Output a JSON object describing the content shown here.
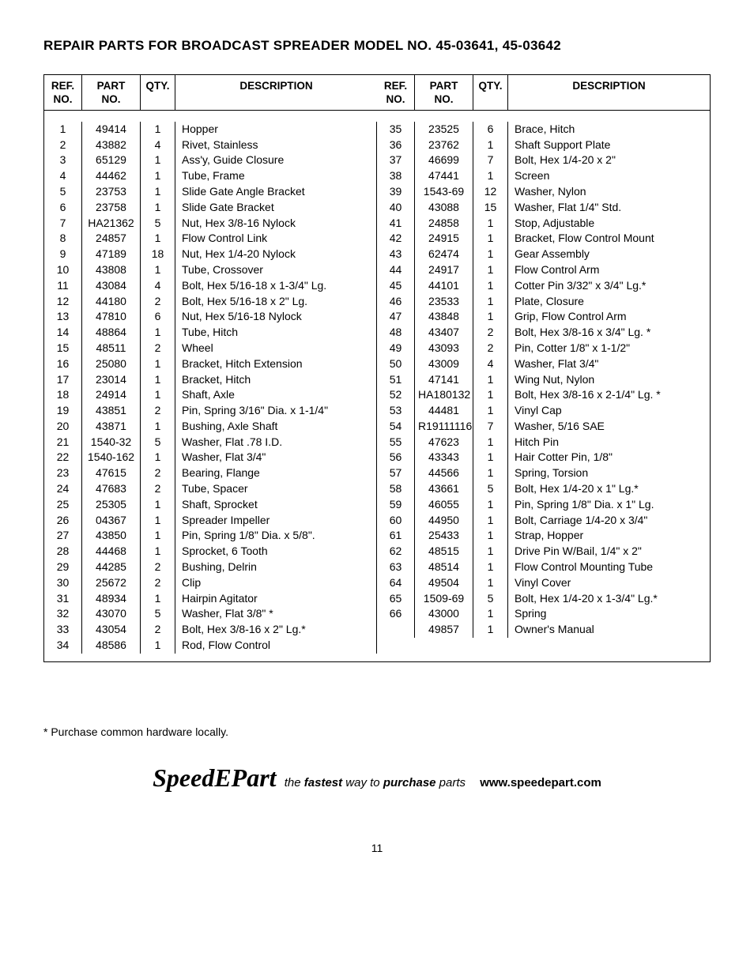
{
  "title": "REPAIR PARTS FOR BROADCAST SPREADER MODEL NO. 45-03641, 45-03642",
  "headers": {
    "ref": "REF.\nNO.",
    "part": "PART\nNO.",
    "qty": "QTY.",
    "desc": "DESCRIPTION"
  },
  "parts_left": [
    {
      "ref": "1",
      "part": "49414",
      "qty": "1",
      "desc": "Hopper"
    },
    {
      "ref": "2",
      "part": "43882",
      "qty": "4",
      "desc": "Rivet, Stainless"
    },
    {
      "ref": "3",
      "part": "65129",
      "qty": "1",
      "desc": "Ass'y, Guide Closure"
    },
    {
      "ref": "4",
      "part": "44462",
      "qty": "1",
      "desc": "Tube, Frame"
    },
    {
      "ref": "5",
      "part": "23753",
      "qty": "1",
      "desc": "Slide Gate Angle Bracket"
    },
    {
      "ref": "6",
      "part": "23758",
      "qty": "1",
      "desc": "Slide Gate Bracket"
    },
    {
      "ref": "7",
      "part": "HA21362",
      "qty": "5",
      "desc": "Nut, Hex 3/8-16 Nylock"
    },
    {
      "ref": "8",
      "part": "24857",
      "qty": "1",
      "desc": "Flow Control Link"
    },
    {
      "ref": "9",
      "part": "47189",
      "qty": "18",
      "desc": "Nut, Hex 1/4-20 Nylock"
    },
    {
      "ref": "10",
      "part": "43808",
      "qty": "1",
      "desc": "Tube, Crossover"
    },
    {
      "ref": "11",
      "part": "43084",
      "qty": "4",
      "desc": "Bolt, Hex 5/16-18 x 1-3/4\" Lg."
    },
    {
      "ref": "12",
      "part": "44180",
      "qty": "2",
      "desc": "Bolt, Hex 5/16-18 x 2\" Lg."
    },
    {
      "ref": "13",
      "part": "47810",
      "qty": "6",
      "desc": "Nut, Hex 5/16-18 Nylock"
    },
    {
      "ref": "14",
      "part": "48864",
      "qty": "1",
      "desc": "Tube, Hitch"
    },
    {
      "ref": "15",
      "part": "48511",
      "qty": "2",
      "desc": "Wheel"
    },
    {
      "ref": "16",
      "part": "25080",
      "qty": "1",
      "desc": "Bracket, Hitch Extension"
    },
    {
      "ref": "17",
      "part": "23014",
      "qty": "1",
      "desc": "Bracket, Hitch"
    },
    {
      "ref": "18",
      "part": "24914",
      "qty": "1",
      "desc": "Shaft, Axle"
    },
    {
      "ref": "19",
      "part": "43851",
      "qty": "2",
      "desc": "Pin, Spring 3/16\" Dia. x 1-1/4\""
    },
    {
      "ref": "20",
      "part": "43871",
      "qty": "1",
      "desc": "Bushing, Axle Shaft"
    },
    {
      "ref": "21",
      "part": "1540-32",
      "qty": "5",
      "desc": "Washer, Flat .78 I.D."
    },
    {
      "ref": "22",
      "part": "1540-162",
      "qty": "1",
      "desc": "Washer, Flat 3/4\""
    },
    {
      "ref": "23",
      "part": "47615",
      "qty": "2",
      "desc": "Bearing, Flange"
    },
    {
      "ref": "24",
      "part": "47683",
      "qty": "2",
      "desc": "Tube, Spacer"
    },
    {
      "ref": "25",
      "part": "25305",
      "qty": "1",
      "desc": "Shaft, Sprocket"
    },
    {
      "ref": "26",
      "part": "04367",
      "qty": "1",
      "desc": "Spreader Impeller"
    },
    {
      "ref": "27",
      "part": "43850",
      "qty": "1",
      "desc": "Pin, Spring 1/8\" Dia. x 5/8\"."
    },
    {
      "ref": "28",
      "part": "44468",
      "qty": "1",
      "desc": "Sprocket, 6 Tooth"
    },
    {
      "ref": "29",
      "part": "44285",
      "qty": "2",
      "desc": "Bushing, Delrin"
    },
    {
      "ref": "30",
      "part": "25672",
      "qty": "2",
      "desc": "Clip"
    },
    {
      "ref": "31",
      "part": "48934",
      "qty": "1",
      "desc": "Hairpin Agitator"
    },
    {
      "ref": "32",
      "part": "43070",
      "qty": "5",
      "desc": "Washer, Flat 3/8\" *"
    },
    {
      "ref": "33",
      "part": "43054",
      "qty": "2",
      "desc": "Bolt, Hex 3/8-16 x 2\" Lg.*"
    },
    {
      "ref": "34",
      "part": "48586",
      "qty": "1",
      "desc": "Rod, Flow Control"
    }
  ],
  "parts_right": [
    {
      "ref": "35",
      "part": "23525",
      "qty": "6",
      "desc": "Brace, Hitch"
    },
    {
      "ref": "36",
      "part": "23762",
      "qty": "1",
      "desc": "Shaft Support Plate"
    },
    {
      "ref": "37",
      "part": "46699",
      "qty": "7",
      "desc": "Bolt, Hex 1/4-20 x 2\""
    },
    {
      "ref": "38",
      "part": "47441",
      "qty": "1",
      "desc": "Screen"
    },
    {
      "ref": "39",
      "part": "1543-69",
      "qty": "12",
      "desc": "Washer, Nylon"
    },
    {
      "ref": "40",
      "part": "43088",
      "qty": "15",
      "desc": "Washer, Flat 1/4\" Std."
    },
    {
      "ref": "41",
      "part": "24858",
      "qty": "1",
      "desc": "Stop, Adjustable"
    },
    {
      "ref": "42",
      "part": "24915",
      "qty": "1",
      "desc": "Bracket, Flow Control Mount"
    },
    {
      "ref": "43",
      "part": "62474",
      "qty": "1",
      "desc": "Gear Assembly"
    },
    {
      "ref": "44",
      "part": "24917",
      "qty": "1",
      "desc": "Flow Control Arm"
    },
    {
      "ref": "45",
      "part": "44101",
      "qty": "1",
      "desc": "Cotter Pin 3/32\" x 3/4\" Lg.*"
    },
    {
      "ref": "46",
      "part": "23533",
      "qty": "1",
      "desc": "Plate, Closure"
    },
    {
      "ref": "47",
      "part": "43848",
      "qty": "1",
      "desc": "Grip, Flow Control Arm"
    },
    {
      "ref": "48",
      "part": "43407",
      "qty": "2",
      "desc": "Bolt, Hex 3/8-16 x 3/4\" Lg. *"
    },
    {
      "ref": "49",
      "part": "43093",
      "qty": "2",
      "desc": "Pin, Cotter 1/8\" x 1-1/2\""
    },
    {
      "ref": "50",
      "part": "43009",
      "qty": "4",
      "desc": "Washer, Flat 3/4\""
    },
    {
      "ref": "51",
      "part": "47141",
      "qty": "1",
      "desc": "Wing Nut, Nylon"
    },
    {
      "ref": "52",
      "part": "HA180132",
      "qty": "1",
      "desc": "Bolt, Hex 3/8-16 x 2-1/4\" Lg. *"
    },
    {
      "ref": "53",
      "part": "44481",
      "qty": "1",
      "desc": "Vinyl Cap"
    },
    {
      "ref": "54",
      "part": "R19111116",
      "qty": "7",
      "desc": "Washer, 5/16 SAE"
    },
    {
      "ref": "55",
      "part": "47623",
      "qty": "1",
      "desc": "Hitch Pin"
    },
    {
      "ref": "56",
      "part": "43343",
      "qty": "1",
      "desc": "Hair Cotter Pin, 1/8\""
    },
    {
      "ref": "57",
      "part": "44566",
      "qty": "1",
      "desc": "Spring, Torsion"
    },
    {
      "ref": "58",
      "part": "43661",
      "qty": "5",
      "desc": "Bolt, Hex 1/4-20 x 1\" Lg.*"
    },
    {
      "ref": "59",
      "part": "46055",
      "qty": "1",
      "desc": "Pin, Spring 1/8\" Dia. x 1\" Lg."
    },
    {
      "ref": "60",
      "part": "44950",
      "qty": "1",
      "desc": "Bolt, Carriage 1/4-20 x 3/4\""
    },
    {
      "ref": "61",
      "part": "25433",
      "qty": "1",
      "desc": "Strap, Hopper"
    },
    {
      "ref": "62",
      "part": "48515",
      "qty": "1",
      "desc": "Drive Pin W/Bail, 1/4\" x 2\""
    },
    {
      "ref": "63",
      "part": "48514",
      "qty": "1",
      "desc": "Flow Control Mounting Tube"
    },
    {
      "ref": "64",
      "part": "49504",
      "qty": "1",
      "desc": "Vinyl Cover"
    },
    {
      "ref": "65",
      "part": "1509-69",
      "qty": "5",
      "desc": "Bolt, Hex 1/4-20 x 1-3/4\" Lg.*"
    },
    {
      "ref": "66",
      "part": "43000",
      "qty": "1",
      "desc": "Spring"
    },
    {
      "ref": "",
      "part": "49857",
      "qty": "1",
      "desc": "Owner's Manual"
    },
    {
      "ref": "",
      "part": "",
      "qty": "",
      "desc": ""
    }
  ],
  "footnote": "* Purchase common hardware locally.",
  "promo": {
    "brand": "SpeedEPart",
    "prefix": "the ",
    "fastest": "fastest",
    "mid": " way to ",
    "purchase": "purchase",
    "suffix": " parts",
    "url": "www.speedepart.com"
  },
  "page_number": "11"
}
